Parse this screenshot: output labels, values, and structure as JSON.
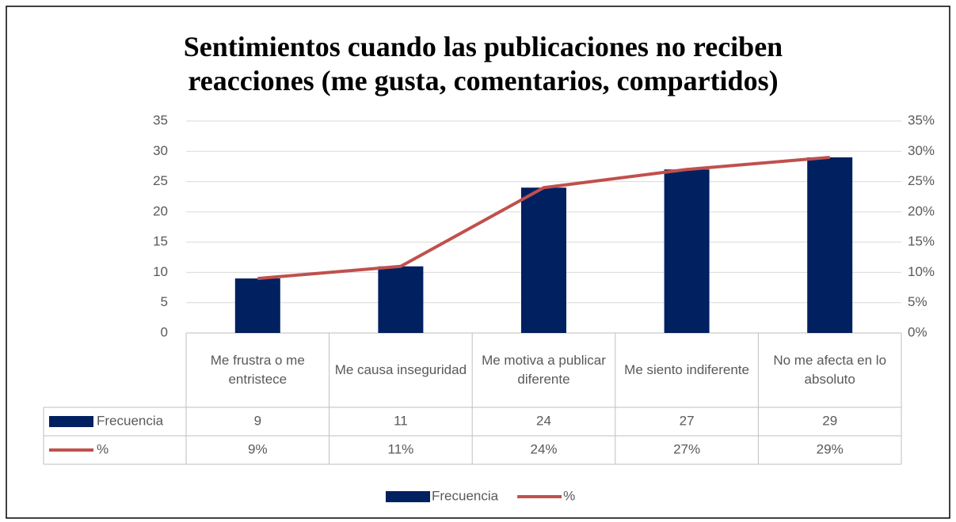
{
  "chart_data": {
    "type": "bar",
    "title": "Sentimientos cuando las publicaciones no reciben reacciones (me gusta, comentarios, compartidos)",
    "categories": [
      "Me frustra o me entristece",
      "Me causa inseguridad",
      "Me motiva a publicar diferente",
      "Me siento indiferente",
      "No me afecta en lo absoluto"
    ],
    "series": [
      {
        "name": "Frecuencia",
        "type": "bar",
        "color": "#002060",
        "values": [
          9,
          11,
          24,
          27,
          29
        ]
      },
      {
        "name": "%",
        "type": "line",
        "axis": "y2",
        "color": "#c0504d",
        "values": [
          9,
          11,
          24,
          27,
          29
        ],
        "value_labels": [
          "9%",
          "11%",
          "24%",
          "27%",
          "29%"
        ]
      }
    ],
    "ylim": [
      0,
      35
    ],
    "yticks": [
      0,
      5,
      10,
      15,
      20,
      25,
      30,
      35
    ],
    "y2lim": [
      0,
      35
    ],
    "y2ticks": [
      {
        "value": 0,
        "label": "0%"
      },
      {
        "value": 5,
        "label": "5%"
      },
      {
        "value": 10,
        "label": "10%"
      },
      {
        "value": 15,
        "label": "15%"
      },
      {
        "value": 20,
        "label": "20%"
      },
      {
        "value": 25,
        "label": "25%"
      },
      {
        "value": 30,
        "label": "30%"
      },
      {
        "value": 35,
        "label": "35%"
      }
    ],
    "grid": true,
    "legend": "bottom"
  }
}
